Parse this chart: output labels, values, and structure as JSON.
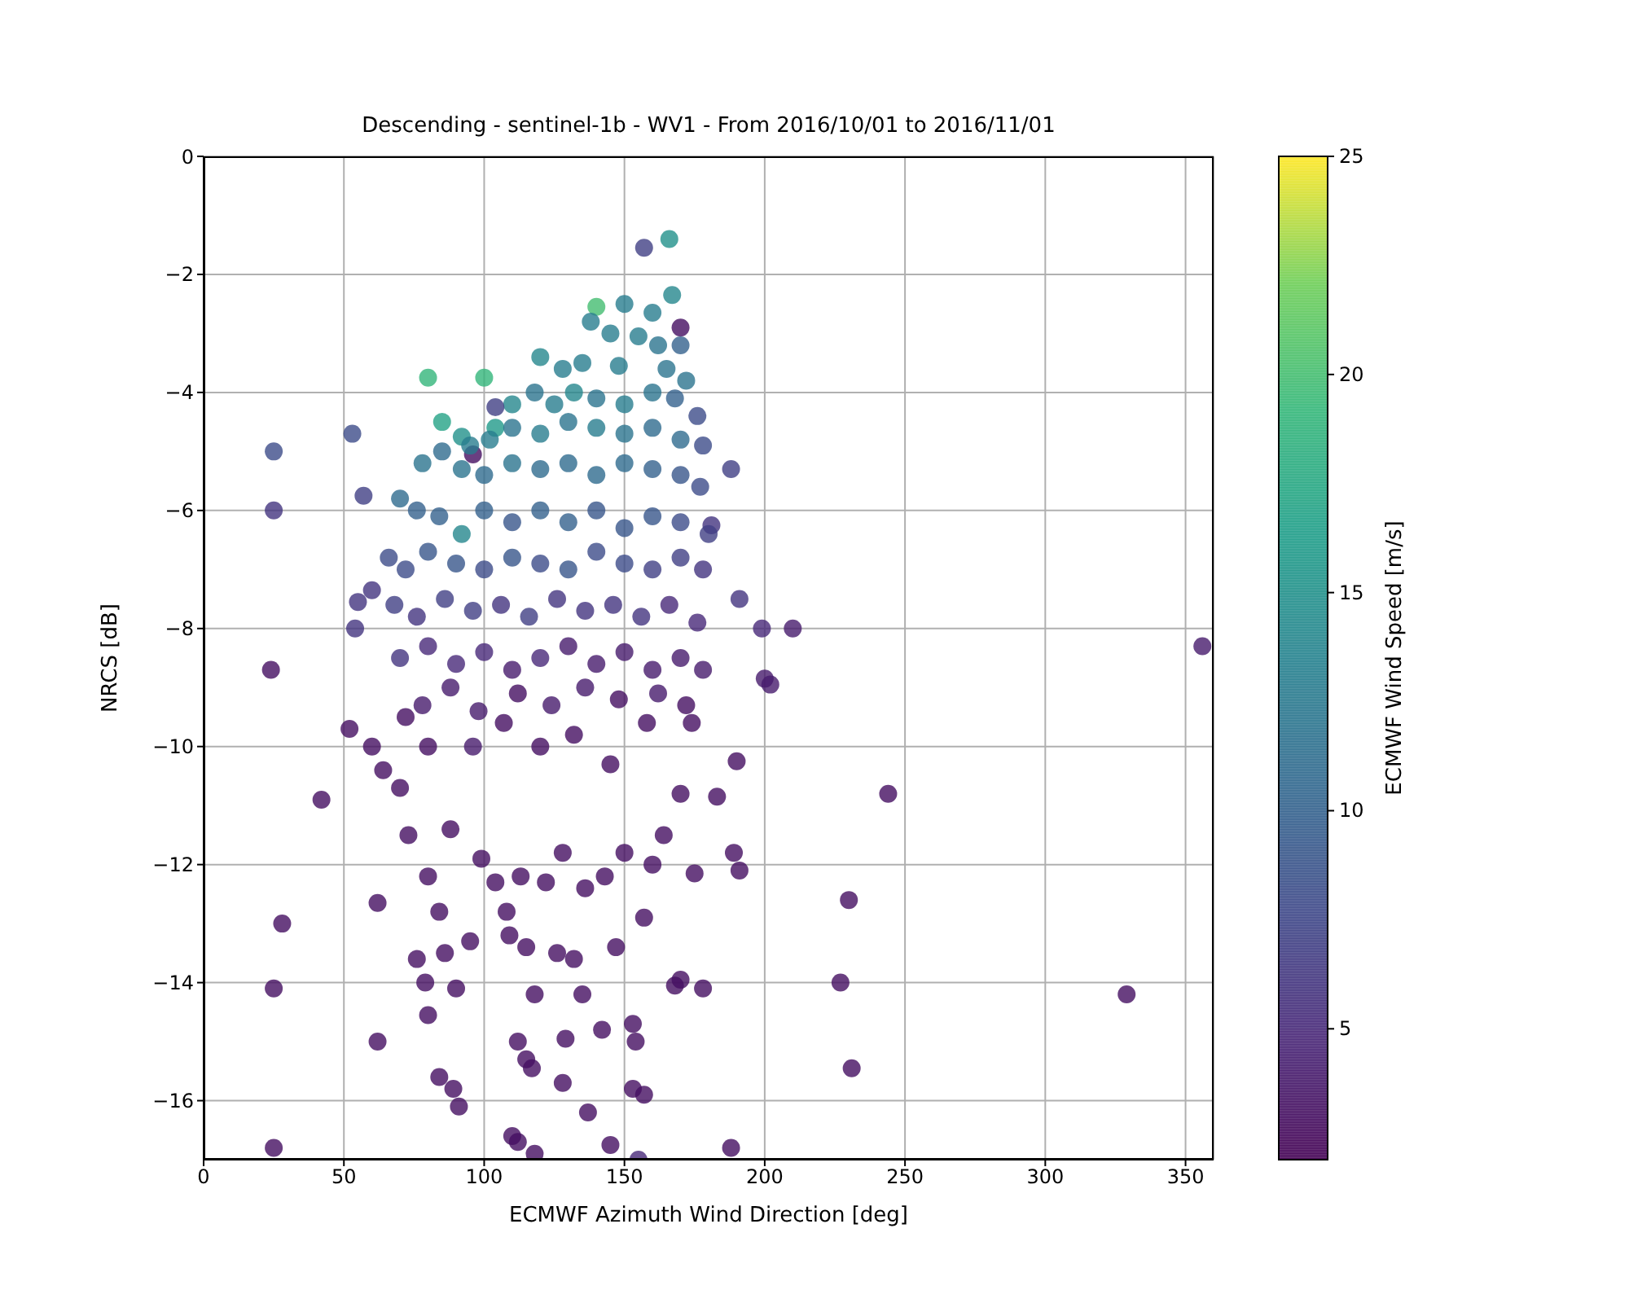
{
  "chart_data": {
    "type": "scatter",
    "title": "Descending - sentinel-1b - WV1 - From 2016/10/01 to 2016/11/01",
    "xlabel": "ECMWF Azimuth Wind Direction [deg]",
    "ylabel": "NRCS [dB]",
    "clabel": "ECMWF Wind Speed [m/s]",
    "x": [
      25,
      25,
      24,
      42,
      25,
      28,
      25,
      52,
      53,
      57,
      55,
      60,
      54,
      62,
      62,
      80,
      100,
      85,
      92,
      104,
      96,
      150,
      140,
      166,
      157,
      167,
      170,
      188,
      181,
      191,
      199,
      210,
      200,
      202,
      190,
      183,
      189,
      191,
      175,
      244,
      230,
      227,
      231,
      329,
      356,
      188,
      178,
      168,
      170,
      155,
      145,
      137,
      118,
      110,
      112,
      89,
      91,
      84,
      80,
      79,
      90,
      76,
      86,
      95,
      109,
      115,
      118,
      112,
      115,
      117,
      128,
      135,
      129,
      142,
      153,
      154,
      153,
      157,
      126,
      132,
      147,
      157,
      160,
      64,
      70,
      73,
      80,
      84,
      88,
      99,
      104,
      108,
      113,
      122,
      128,
      136,
      143,
      150,
      164,
      170,
      72,
      80,
      96,
      107,
      120,
      132,
      145,
      158,
      174,
      60,
      138,
      145,
      155,
      162,
      170,
      160,
      120,
      128,
      135,
      148,
      165,
      172,
      110,
      118,
      125,
      132,
      140,
      150,
      160,
      168,
      176,
      104,
      95,
      102,
      110,
      120,
      130,
      140,
      150,
      160,
      170,
      178,
      78,
      85,
      92,
      100,
      110,
      120,
      130,
      140,
      150,
      160,
      170,
      177,
      70,
      76,
      84,
      92,
      100,
      110,
      120,
      130,
      140,
      150,
      160,
      170,
      180,
      66,
      72,
      80,
      90,
      100,
      110,
      120,
      130,
      140,
      150,
      160,
      170,
      178,
      68,
      76,
      86,
      96,
      106,
      116,
      126,
      136,
      146,
      156,
      166,
      176,
      70,
      80,
      90,
      100,
      110,
      120,
      130,
      140,
      150,
      160,
      170,
      178,
      78,
      88,
      98,
      112,
      124,
      136,
      148,
      162,
      172
    ],
    "values": [
      -5.0,
      -6.0,
      -8.7,
      -10.9,
      -14.1,
      -13.0,
      -16.8,
      -9.7,
      -4.7,
      -5.75,
      -7.55,
      -7.35,
      -8.0,
      -12.65,
      -15.0,
      -3.75,
      -3.75,
      -4.5,
      -4.75,
      -4.6,
      -5.05,
      -2.5,
      -2.55,
      -1.4,
      -1.55,
      -2.35,
      -2.9,
      -5.3,
      -6.25,
      -7.5,
      -8.0,
      -8.0,
      -8.85,
      -8.95,
      -10.25,
      -10.85,
      -11.8,
      -12.1,
      -12.15,
      -10.8,
      -12.6,
      -14.0,
      -15.45,
      -14.2,
      -8.3,
      -16.8,
      -14.1,
      -14.05,
      -13.95,
      -17.0,
      -16.75,
      -16.2,
      -16.9,
      -16.6,
      -16.7,
      -15.8,
      -16.1,
      -15.6,
      -14.55,
      -14.0,
      -14.1,
      -13.6,
      -13.5,
      -13.3,
      -13.2,
      -13.4,
      -14.2,
      -15.0,
      -15.3,
      -15.45,
      -15.7,
      -14.2,
      -14.95,
      -14.8,
      -14.7,
      -15.0,
      -15.8,
      -15.9,
      -13.5,
      -13.6,
      -13.4,
      -12.9,
      -12.0,
      -10.4,
      -10.7,
      -11.5,
      -12.2,
      -12.8,
      -11.4,
      -11.9,
      -12.3,
      -12.8,
      -12.2,
      -12.3,
      -11.8,
      -12.4,
      -12.2,
      -11.8,
      -11.5,
      -10.8,
      -9.5,
      -10.0,
      -10.0,
      -9.6,
      -10.0,
      -9.8,
      -10.3,
      -9.6,
      -9.6,
      -10.0,
      -2.8,
      -3.0,
      -3.05,
      -3.2,
      -3.2,
      -2.65,
      -3.4,
      -3.6,
      -3.5,
      -3.55,
      -3.6,
      -3.8,
      -4.2,
      -4.0,
      -4.2,
      -4.0,
      -4.1,
      -4.2,
      -4.0,
      -4.1,
      -4.4,
      -4.25,
      -4.9,
      -4.8,
      -4.6,
      -4.7,
      -4.5,
      -4.6,
      -4.7,
      -4.6,
      -4.8,
      -4.9,
      -5.2,
      -5.0,
      -5.3,
      -5.4,
      -5.2,
      -5.3,
      -5.2,
      -5.4,
      -5.2,
      -5.3,
      -5.4,
      -5.6,
      -5.8,
      -6.0,
      -6.1,
      -6.4,
      -6.0,
      -6.2,
      -6.0,
      -6.2,
      -6.0,
      -6.3,
      -6.1,
      -6.2,
      -6.4,
      -6.8,
      -7.0,
      -6.7,
      -6.9,
      -7.0,
      -6.8,
      -6.9,
      -7.0,
      -6.7,
      -6.9,
      -7.0,
      -6.8,
      -7.0,
      -7.6,
      -7.8,
      -7.5,
      -7.7,
      -7.6,
      -7.8,
      -7.5,
      -7.7,
      -7.6,
      -7.8,
      -7.6,
      -7.9,
      -8.5,
      -8.3,
      -8.6,
      -8.4,
      -8.7,
      -8.5,
      -8.3,
      -8.6,
      -8.4,
      -8.7,
      -8.5,
      -8.7,
      -9.3,
      -9.0,
      -9.4,
      -9.1,
      -9.3,
      -9.0,
      -9.2,
      -9.1,
      -9.3
    ],
    "cvalues": [
      8,
      6,
      3,
      3,
      3,
      3,
      3,
      3,
      8,
      7,
      6,
      6,
      6,
      3,
      3,
      19,
      19,
      17,
      15,
      16,
      3,
      13,
      20,
      15,
      7,
      14,
      3,
      7,
      6,
      6,
      5,
      4,
      4,
      4,
      3,
      3,
      3,
      3,
      3,
      3,
      3,
      3,
      3,
      3,
      4,
      3,
      3,
      3,
      3,
      5,
      3,
      3,
      3,
      3,
      3,
      3,
      3,
      3,
      3,
      3,
      3,
      3,
      3,
      3,
      3,
      3,
      3,
      3,
      3,
      3,
      3,
      3,
      3,
      3,
      3,
      3,
      3,
      3,
      3,
      3,
      3,
      3,
      3,
      3,
      3,
      3,
      3,
      3,
      3,
      3,
      3,
      3,
      3,
      3,
      3,
      3,
      3,
      3,
      3,
      3,
      3,
      3,
      4,
      3,
      3,
      3,
      3,
      3,
      3,
      3,
      13,
      13,
      13,
      12,
      10,
      13,
      14,
      13,
      13,
      13,
      12,
      12,
      14,
      12,
      13,
      14,
      12,
      13,
      12,
      10,
      8,
      7,
      13,
      13,
      12,
      13,
      12,
      13,
      12,
      11,
      11,
      8,
      12,
      11,
      12,
      11,
      12,
      11,
      11,
      11,
      11,
      10,
      9,
      8,
      11,
      10,
      10,
      14,
      10,
      9,
      10,
      10,
      9,
      9,
      9,
      8,
      7,
      8,
      8,
      9,
      9,
      8,
      9,
      8,
      9,
      8,
      8,
      7,
      7,
      6,
      7,
      6,
      7,
      7,
      6,
      7,
      6,
      6,
      6,
      6,
      5,
      5,
      6,
      5,
      5,
      5,
      4,
      5,
      4,
      4,
      4,
      4,
      4,
      4,
      4,
      4,
      4,
      3,
      4,
      4,
      3,
      4,
      3
    ],
    "xlim": [
      0,
      360
    ],
    "ylim": [
      -17,
      0
    ],
    "xticks": [
      0,
      50,
      100,
      150,
      200,
      250,
      300,
      350
    ],
    "yticks": [
      0,
      -2,
      -4,
      -6,
      -8,
      -10,
      -12,
      -14,
      -16
    ],
    "clim": [
      2,
      25
    ],
    "cticks": [
      5,
      10,
      15,
      20,
      25
    ],
    "grid": true,
    "marker": "circle"
  }
}
